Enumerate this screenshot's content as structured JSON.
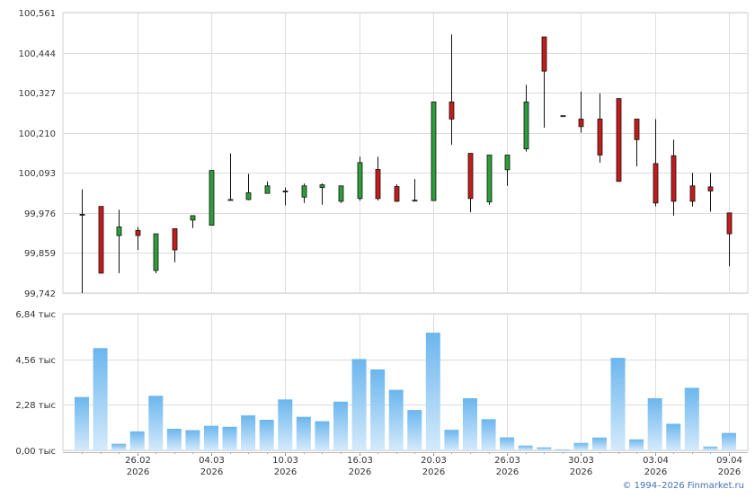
{
  "chart_data": [
    {
      "type": "candlestick",
      "name": "price-panel",
      "ylim": [
        99.742,
        100.561
      ],
      "y_ticks": [
        "100,561",
        "100,444",
        "100,327",
        "100,210",
        "100,093",
        "99,976",
        "99,859",
        "99,742"
      ],
      "y_tick_values": [
        100.561,
        100.444,
        100.327,
        100.21,
        100.093,
        99.976,
        99.859,
        99.742
      ],
      "up_color": "#2e9e3a",
      "down_color": "#c41c1c",
      "grid": true,
      "candles": [
        {
          "o": 99.972,
          "h": 100.045,
          "l": 99.742,
          "c": 99.972
        },
        {
          "o": 99.995,
          "h": 99.995,
          "l": 99.8,
          "c": 99.8
        },
        {
          "o": 99.91,
          "h": 99.985,
          "l": 99.8,
          "c": 99.935
        },
        {
          "o": 99.925,
          "h": 99.935,
          "l": 99.868,
          "c": 99.91
        },
        {
          "o": 99.808,
          "h": 99.915,
          "l": 99.8,
          "c": 99.915
        },
        {
          "o": 99.93,
          "h": 99.93,
          "l": 99.832,
          "c": 99.868
        },
        {
          "o": 99.955,
          "h": 99.968,
          "l": 99.932,
          "c": 99.968
        },
        {
          "o": 99.94,
          "h": 100.1,
          "l": 99.94,
          "c": 100.1
        },
        {
          "o": 100.015,
          "h": 100.15,
          "l": 100.015,
          "c": 100.015
        },
        {
          "o": 100.015,
          "h": 100.09,
          "l": 100.013,
          "c": 100.035
        },
        {
          "o": 100.033,
          "h": 100.068,
          "l": 100.033,
          "c": 100.055
        },
        {
          "o": 100.04,
          "h": 100.05,
          "l": 99.998,
          "c": 100.04
        },
        {
          "o": 100.022,
          "h": 100.062,
          "l": 100.005,
          "c": 100.055
        },
        {
          "o": 100.05,
          "h": 100.062,
          "l": 100.0,
          "c": 100.058
        },
        {
          "o": 100.01,
          "h": 100.055,
          "l": 100.005,
          "c": 100.055
        },
        {
          "o": 100.018,
          "h": 100.14,
          "l": 100.012,
          "c": 100.123
        },
        {
          "o": 100.103,
          "h": 100.14,
          "l": 100.012,
          "c": 100.018
        },
        {
          "o": 100.053,
          "h": 100.06,
          "l": 100.008,
          "c": 100.01
        },
        {
          "o": 100.013,
          "h": 100.075,
          "l": 100.01,
          "c": 100.013
        },
        {
          "o": 100.012,
          "h": 100.3,
          "l": 100.012,
          "c": 100.3
        },
        {
          "o": 100.3,
          "h": 100.497,
          "l": 100.175,
          "c": 100.25
        },
        {
          "o": 100.15,
          "h": 100.15,
          "l": 99.978,
          "c": 100.018
        },
        {
          "o": 100.008,
          "h": 100.145,
          "l": 100.0,
          "c": 100.145
        },
        {
          "o": 100.102,
          "h": 100.145,
          "l": 100.055,
          "c": 100.145
        },
        {
          "o": 100.163,
          "h": 100.35,
          "l": 100.155,
          "c": 100.3
        },
        {
          "o": 100.49,
          "h": 100.49,
          "l": 100.225,
          "c": 100.39
        },
        {
          "o": 100.26,
          "h": 100.26,
          "l": 100.26,
          "c": 100.26
        },
        {
          "o": 100.25,
          "h": 100.33,
          "l": 100.21,
          "c": 100.228
        },
        {
          "o": 100.25,
          "h": 100.325,
          "l": 100.123,
          "c": 100.145
        },
        {
          "o": 100.31,
          "h": 100.31,
          "l": 100.068,
          "c": 100.068
        },
        {
          "o": 100.25,
          "h": 100.25,
          "l": 100.112,
          "c": 100.19
        },
        {
          "o": 100.12,
          "h": 100.25,
          "l": 99.995,
          "c": 100.005
        },
        {
          "o": 100.143,
          "h": 100.19,
          "l": 99.968,
          "c": 100.01
        },
        {
          "o": 100.055,
          "h": 100.093,
          "l": 99.995,
          "c": 100.01
        },
        {
          "o": 100.052,
          "h": 100.093,
          "l": 99.98,
          "c": 100.04
        },
        {
          "o": 99.976,
          "h": 99.976,
          "l": 99.82,
          "c": 99.915
        }
      ]
    },
    {
      "type": "bar",
      "name": "volume-panel",
      "ylim": [
        0,
        6.84
      ],
      "y_ticks": [
        "6,84 тыс",
        "4,56 тыс",
        "2,28 тыс",
        "0,00 тыс"
      ],
      "y_tick_values": [
        6.84,
        4.56,
        2.28,
        0.0
      ],
      "x_tick_labels": [
        {
          "date": "26.02",
          "year": "2026",
          "index": 3
        },
        {
          "date": "04.03",
          "year": "2026",
          "index": 7
        },
        {
          "date": "10.03",
          "year": "2026",
          "index": 11
        },
        {
          "date": "16.03",
          "year": "2026",
          "index": 15
        },
        {
          "date": "20.03",
          "year": "2026",
          "index": 19
        },
        {
          "date": "26.03",
          "year": "2026",
          "index": 23
        },
        {
          "date": "30.03",
          "year": "2026",
          "index": 27
        },
        {
          "date": "03.04",
          "year": "2026",
          "index": 31
        },
        {
          "date": "09.04",
          "year": "2026",
          "index": 35
        }
      ],
      "values": [
        2.67,
        5.12,
        0.33,
        0.95,
        2.73,
        1.08,
        1.01,
        1.23,
        1.18,
        1.75,
        1.53,
        2.55,
        1.68,
        1.46,
        2.44,
        4.57,
        4.05,
        3.03,
        2.02,
        5.89,
        1.03,
        2.61,
        1.56,
        0.65,
        0.24,
        0.15,
        0.05,
        0.37,
        0.64,
        4.63,
        0.55,
        2.61,
        1.33,
        3.13,
        0.19,
        0.87
      ],
      "bar_color_top": "#6bb6ee",
      "bar_color_bottom": "#d4eafb",
      "grid": true
    }
  ],
  "footer": {
    "copyright": "© 1994–2026 Finmarket.ru"
  }
}
